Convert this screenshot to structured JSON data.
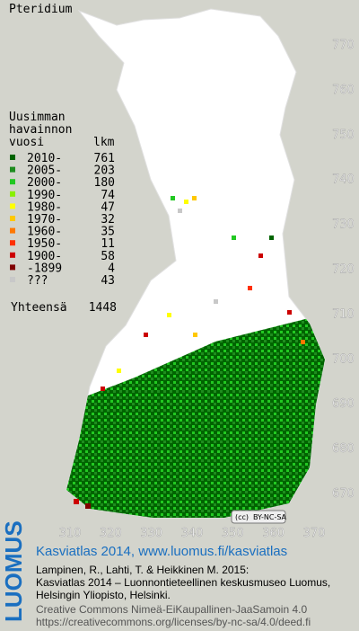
{
  "title": "Pteridium",
  "legend": {
    "header": [
      "Uusimman",
      "havainnon",
      "vuosi"
    ],
    "count_header": "lkm",
    "items": [
      {
        "label": "2010-",
        "count": 761,
        "color": "#006400"
      },
      {
        "label": "2005-",
        "count": 203,
        "color": "#1e8c1e"
      },
      {
        "label": "2000-",
        "count": 180,
        "color": "#22c822"
      },
      {
        "label": "1990-",
        "count": 74,
        "color": "#88f000"
      },
      {
        "label": "1980-",
        "count": 47,
        "color": "#ffff00"
      },
      {
        "label": "1970-",
        "count": 32,
        "color": "#ffc800"
      },
      {
        "label": "1960-",
        "count": 35,
        "color": "#ff7800"
      },
      {
        "label": "1950-",
        "count": 11,
        "color": "#ff3000"
      },
      {
        "label": "1900-",
        "count": 58,
        "color": "#cc0000"
      },
      {
        "label": "-1899",
        "count": 4,
        "color": "#800000"
      },
      {
        "label": "???",
        "count": 43,
        "color": "#c8c8c8"
      }
    ],
    "total_label": "Yhteensä",
    "total": 1448
  },
  "map": {
    "y_labels": [
      770,
      760,
      750,
      740,
      730,
      720,
      710,
      700,
      690,
      680,
      670
    ],
    "x_labels": [
      310,
      320,
      330,
      340,
      350,
      360,
      370
    ],
    "license_badge": "BY-NC-SA"
  },
  "footer": {
    "logo": "LUOMUS",
    "heading": "Kasviatlas 2014, www.luomus.fi/kasviatlas",
    "citation": [
      "Lampinen, R., Lahti, T. & Heikkinen M. 2015:",
      "Kasviatlas 2014 – Luonnontieteellinen keskusmuseo Luomus,",
      "Helsingin Yliopisto, Helsinki."
    ],
    "license": [
      "Creative Commons Nimeä-EiKaupallinen-JaaSamoin 4.0",
      "https://creativecommons.org/licenses/by-nc-sa/4.0/deed.fi"
    ]
  }
}
